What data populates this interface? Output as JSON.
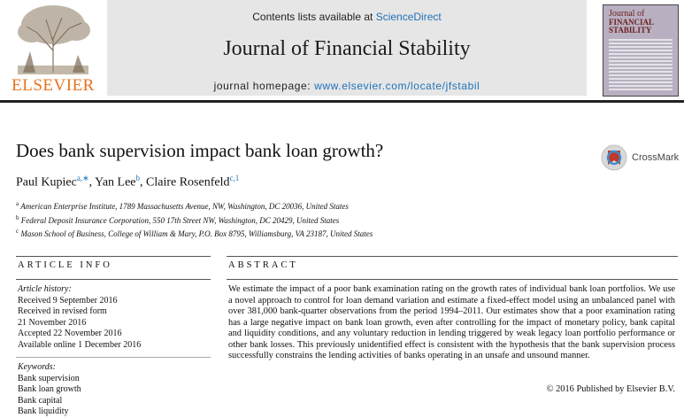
{
  "header": {
    "publisher_logo_text": "ELSEVIER",
    "contents_prefix": "Contents lists available at",
    "contents_link": "ScienceDirect",
    "journal_title": "Journal of Financial Stability",
    "homepage_prefix": "journal homepage:",
    "homepage_url": "www.elsevier.com/locate/jfstabil",
    "cover": {
      "line1": "Journal of",
      "line2": "FINANCIAL STABILITY"
    }
  },
  "article": {
    "title": "Does bank supervision impact bank loan growth?",
    "crossmark_label": "CrossMark",
    "authors": [
      {
        "name": "Paul Kupiec",
        "sup": "a,∗"
      },
      {
        "name": "Yan Lee",
        "sup": "b"
      },
      {
        "name": "Claire Rosenfeld",
        "sup": "c,1"
      }
    ],
    "affiliations": [
      {
        "sup": "a",
        "text": "American Enterprise Institute, 1789 Massachusetts Avenue, NW, Washington, DC 20036, United States"
      },
      {
        "sup": "b",
        "text": "Federal Deposit Insurance Corporation, 550 17th Street NW, Washington, DC 20429, United States"
      },
      {
        "sup": "c",
        "text": "Mason School of Business, College of William & Mary, P.O. Box 8795, Williamsburg, VA 23187, United States"
      }
    ]
  },
  "article_info": {
    "heading": "ARTICLE INFO",
    "history_label": "Article history:",
    "history": [
      "Received 9 September 2016",
      "Received in revised form",
      "21 November 2016",
      "Accepted 22 November 2016",
      "Available online 1 December 2016"
    ],
    "keywords_label": "Keywords:",
    "keywords": [
      "Bank supervision",
      "Bank loan growth",
      "Bank capital",
      "Bank liquidity"
    ]
  },
  "abstract": {
    "heading": "ABSTRACT",
    "text": "We estimate the impact of a poor bank examination rating on the growth rates of individual bank loan portfolios. We use a novel approach to control for loan demand variation and estimate a fixed-effect model using an unbalanced panel with over 381,000 bank-quarter observations from the period 1994–2011. Our estimates show that a poor examination rating has a large negative impact on bank loan growth, even after controlling for the impact of monetary policy, bank capital and liquidity conditions, and any voluntary reduction in lending triggered by weak legacy loan portfolio performance or other bank losses. This previously unidentified effect is consistent with the hypothesis that the bank supervision process successfully constrains the lending activities of banks operating in an unsafe and unsound manner.",
    "copyright": "© 2016 Published by Elsevier B.V."
  }
}
